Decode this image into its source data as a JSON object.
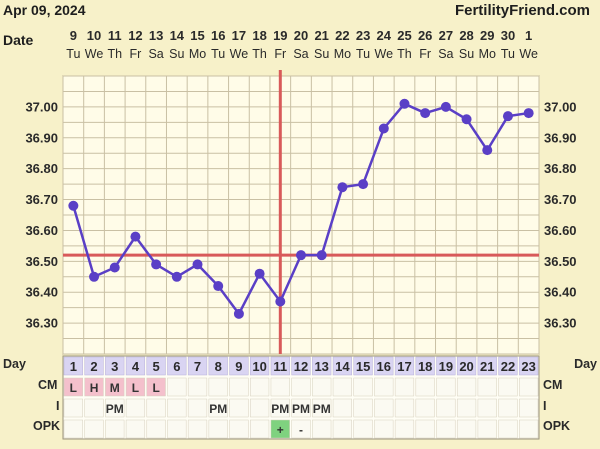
{
  "header": {
    "date": "Apr 09, 2024",
    "brand": "FertilityFriend.com"
  },
  "colors": {
    "background": "#f7f1c9",
    "plot_background": "#fffce8",
    "grid": "#c9c0a4",
    "line": "#5a3fc6",
    "coverline": "#d85a5a",
    "cm_highlight": "#f4c0cc",
    "opk_positive": "#7fd27f"
  },
  "chart_data": {
    "type": "line",
    "date_row_label": "Date",
    "dates": [
      "9",
      "10",
      "11",
      "12",
      "13",
      "14",
      "15",
      "16",
      "17",
      "18",
      "19",
      "20",
      "21",
      "22",
      "23",
      "24",
      "25",
      "26",
      "27",
      "28",
      "29",
      "30",
      "1"
    ],
    "weekdays": [
      "Tu",
      "We",
      "Th",
      "Fr",
      "Sa",
      "Su",
      "Mo",
      "Tu",
      "We",
      "Th",
      "Fr",
      "Sa",
      "Su",
      "Mo",
      "Tu",
      "We",
      "Th",
      "Fr",
      "Sa",
      "Su",
      "Mo",
      "Tu",
      "We"
    ],
    "day_row_label": "Day",
    "cycle_days": [
      "1",
      "2",
      "3",
      "4",
      "5",
      "6",
      "7",
      "8",
      "9",
      "10",
      "11",
      "12",
      "13",
      "14",
      "15",
      "16",
      "17",
      "18",
      "19",
      "20",
      "21",
      "22",
      "23"
    ],
    "temperatures": [
      36.68,
      36.45,
      36.48,
      36.58,
      36.49,
      36.45,
      36.49,
      36.42,
      36.33,
      36.46,
      36.37,
      36.52,
      36.52,
      36.74,
      36.75,
      36.93,
      37.01,
      36.98,
      37.0,
      36.96,
      36.86,
      36.97,
      36.98
    ],
    "ylim": [
      36.2,
      37.1
    ],
    "y_ticks": [
      "37.00",
      "36.90",
      "36.80",
      "36.70",
      "36.60",
      "36.50",
      "36.40",
      "36.30"
    ],
    "coverline": 36.52,
    "ovulation_day": 11,
    "grid": true
  },
  "rows": {
    "cm": {
      "label": "CM",
      "values": [
        "L",
        "H",
        "M",
        "L",
        "L",
        "",
        "",
        "",
        "",
        "",
        "",
        "",
        "",
        "",
        "",
        "",
        "",
        "",
        "",
        "",
        "",
        "",
        ""
      ]
    },
    "i": {
      "label": "I",
      "values": [
        "",
        "",
        "PM",
        "",
        "",
        "",
        "",
        "PM",
        "",
        "",
        "PM",
        "PM",
        "PM",
        "",
        "",
        "",
        "",
        "",
        "",
        "",
        "",
        "",
        ""
      ]
    },
    "opk": {
      "label": "OPK",
      "values": [
        "",
        "",
        "",
        "",
        "",
        "",
        "",
        "",
        "",
        "",
        "+",
        "-",
        "",
        "",
        "",
        "",
        "",
        "",
        "",
        "",
        "",
        "",
        ""
      ]
    }
  }
}
